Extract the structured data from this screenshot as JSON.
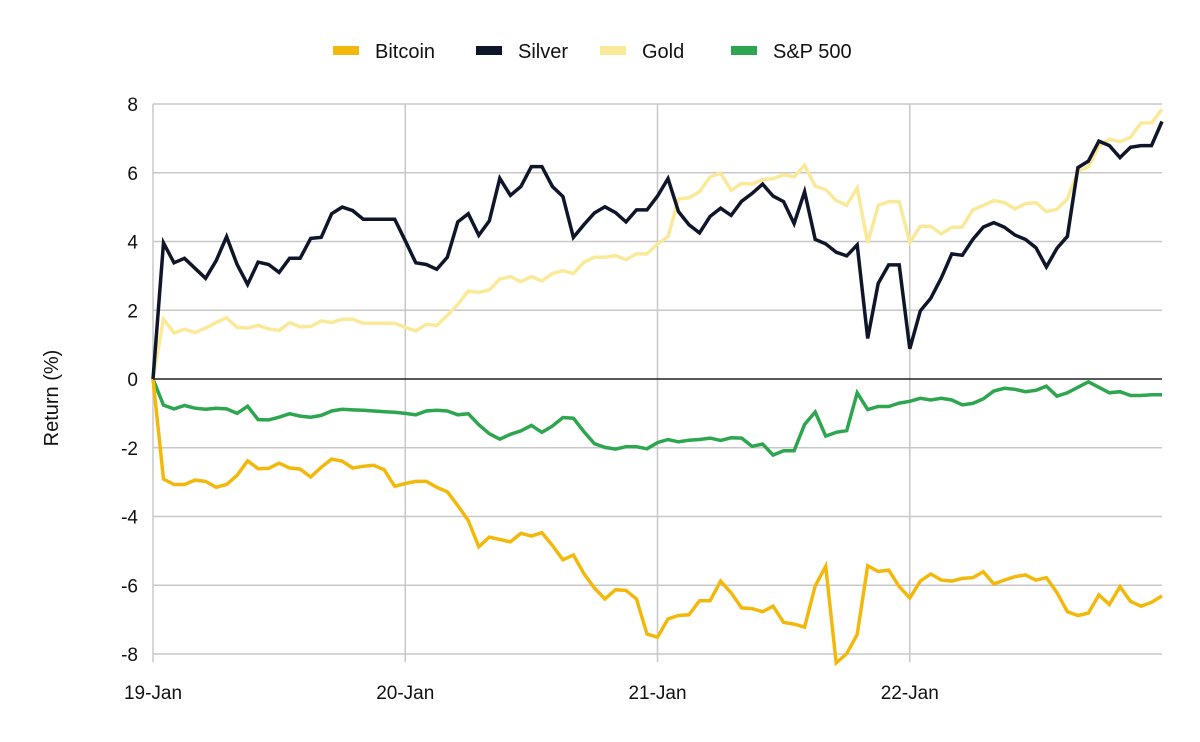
{
  "chart_data": {
    "type": "line",
    "title": "",
    "xlabel": "",
    "ylabel": "Return (%)",
    "ylim": [
      -8,
      8
    ],
    "yticks": [
      8,
      6,
      4,
      2,
      0,
      -2,
      -4,
      -6,
      -8
    ],
    "x_range_hours": [
      0,
      96
    ],
    "x_step_hours": 1,
    "xtick_labels": [
      "19-Jan",
      "20-Jan",
      "21-Jan",
      "22-Jan"
    ],
    "xtick_hours": [
      0,
      24,
      48,
      72
    ],
    "grid": true,
    "legend_position": "top-center",
    "series": [
      {
        "name": "Bitcoin",
        "color": "#f2b90c",
        "values": [
          0,
          -2.91,
          -3.07,
          -3.07,
          -2.94,
          -2.98,
          -3.15,
          -3.07,
          -2.8,
          -2.38,
          -2.61,
          -2.6,
          -2.45,
          -2.59,
          -2.62,
          -2.85,
          -2.57,
          -2.33,
          -2.39,
          -2.59,
          -2.54,
          -2.51,
          -2.64,
          -3.12,
          -3.04,
          -2.98,
          -2.98,
          -3.15,
          -3.28,
          -3.68,
          -4.12,
          -4.88,
          -4.6,
          -4.67,
          -4.74,
          -4.49,
          -4.57,
          -4.47,
          -4.84,
          -5.26,
          -5.12,
          -5.66,
          -6.08,
          -6.4,
          -6.13,
          -6.15,
          -6.4,
          -7.42,
          -7.51,
          -6.98,
          -6.88,
          -6.86,
          -6.45,
          -6.45,
          -5.88,
          -6.22,
          -6.66,
          -6.68,
          -6.77,
          -6.61,
          -7.08,
          -7.13,
          -7.22,
          -6.02,
          -5.45,
          -8.26,
          -7.99,
          -7.43,
          -5.43,
          -5.6,
          -5.56,
          -6.04,
          -6.37,
          -5.88,
          -5.67,
          -5.85,
          -5.88,
          -5.8,
          -5.78,
          -5.61,
          -5.96,
          -5.85,
          -5.75,
          -5.7,
          -5.85,
          -5.78,
          -6.21,
          -6.77,
          -6.88,
          -6.81,
          -6.28,
          -6.56,
          -6.04,
          -6.47,
          -6.61,
          -6.5,
          -6.31
        ]
      },
      {
        "name": "Silver",
        "color": "#0f1629",
        "values": [
          0,
          3.96,
          3.38,
          3.51,
          3.22,
          2.93,
          3.44,
          4.14,
          3.33,
          2.75,
          3.4,
          3.33,
          3.1,
          3.51,
          3.51,
          4.09,
          4.12,
          4.81,
          5.0,
          4.9,
          4.65,
          4.65,
          4.65,
          4.65,
          4.02,
          3.38,
          3.33,
          3.19,
          3.54,
          4.57,
          4.81,
          4.18,
          4.6,
          5.84,
          5.34,
          5.6,
          6.18,
          6.18,
          5.6,
          5.31,
          4.12,
          4.49,
          4.83,
          5.01,
          4.84,
          4.57,
          4.92,
          4.92,
          5.32,
          5.83,
          4.87,
          4.49,
          4.25,
          4.73,
          4.97,
          4.76,
          5.17,
          5.4,
          5.67,
          5.32,
          5.16,
          4.52,
          5.45,
          4.06,
          3.93,
          3.69,
          3.58,
          3.9,
          1.18,
          2.78,
          3.32,
          3.32,
          0.88,
          1.98,
          2.35,
          2.94,
          3.64,
          3.6,
          4.06,
          4.42,
          4.55,
          4.42,
          4.19,
          4.06,
          3.82,
          3.26,
          3.8,
          4.15,
          6.15,
          6.34,
          6.92,
          6.79,
          6.44,
          6.74,
          6.79,
          6.79,
          7.49
        ]
      },
      {
        "name": "Gold",
        "color": "#fbe99a",
        "values": [
          0,
          1.74,
          1.34,
          1.45,
          1.35,
          1.48,
          1.64,
          1.78,
          1.5,
          1.48,
          1.56,
          1.46,
          1.41,
          1.64,
          1.52,
          1.53,
          1.69,
          1.64,
          1.74,
          1.74,
          1.62,
          1.62,
          1.62,
          1.62,
          1.5,
          1.4,
          1.59,
          1.56,
          1.85,
          2.17,
          2.56,
          2.52,
          2.59,
          2.91,
          2.98,
          2.83,
          2.98,
          2.85,
          3.07,
          3.15,
          3.07,
          3.4,
          3.54,
          3.54,
          3.59,
          3.47,
          3.64,
          3.64,
          3.93,
          4.14,
          5.24,
          5.27,
          5.45,
          5.88,
          5.99,
          5.49,
          5.69,
          5.67,
          5.8,
          5.83,
          5.94,
          5.88,
          6.22,
          5.61,
          5.51,
          5.19,
          5.05,
          5.56,
          3.96,
          5.05,
          5.16,
          5.16,
          3.97,
          4.44,
          4.44,
          4.22,
          4.41,
          4.42,
          4.92,
          5.05,
          5.19,
          5.13,
          4.95,
          5.1,
          5.13,
          4.87,
          4.94,
          5.24,
          6.04,
          6.17,
          6.77,
          6.98,
          6.9,
          7.03,
          7.45,
          7.45,
          7.84
        ]
      },
      {
        "name": "S&P 500",
        "color": "#2ea650",
        "values": [
          0,
          -0.76,
          -0.87,
          -0.77,
          -0.85,
          -0.88,
          -0.85,
          -0.87,
          -1.0,
          -0.79,
          -1.18,
          -1.19,
          -1.11,
          -1.01,
          -1.08,
          -1.11,
          -1.06,
          -0.93,
          -0.88,
          -0.9,
          -0.91,
          -0.93,
          -0.95,
          -0.97,
          -1.0,
          -1.04,
          -0.93,
          -0.91,
          -0.93,
          -1.04,
          -1.01,
          -1.33,
          -1.59,
          -1.75,
          -1.61,
          -1.51,
          -1.35,
          -1.55,
          -1.37,
          -1.12,
          -1.14,
          -1.53,
          -1.88,
          -1.99,
          -2.04,
          -1.97,
          -1.97,
          -2.03,
          -1.85,
          -1.76,
          -1.83,
          -1.78,
          -1.76,
          -1.72,
          -1.79,
          -1.71,
          -1.72,
          -1.96,
          -1.89,
          -2.21,
          -2.09,
          -2.09,
          -1.32,
          -0.96,
          -1.66,
          -1.55,
          -1.5,
          -0.4,
          -0.89,
          -0.8,
          -0.8,
          -0.7,
          -0.65,
          -0.56,
          -0.61,
          -0.56,
          -0.61,
          -0.75,
          -0.71,
          -0.58,
          -0.35,
          -0.27,
          -0.3,
          -0.37,
          -0.33,
          -0.21,
          -0.5,
          -0.4,
          -0.24,
          -0.08,
          -0.24,
          -0.4,
          -0.37,
          -0.48,
          -0.48,
          -0.46,
          -0.46
        ]
      }
    ]
  }
}
